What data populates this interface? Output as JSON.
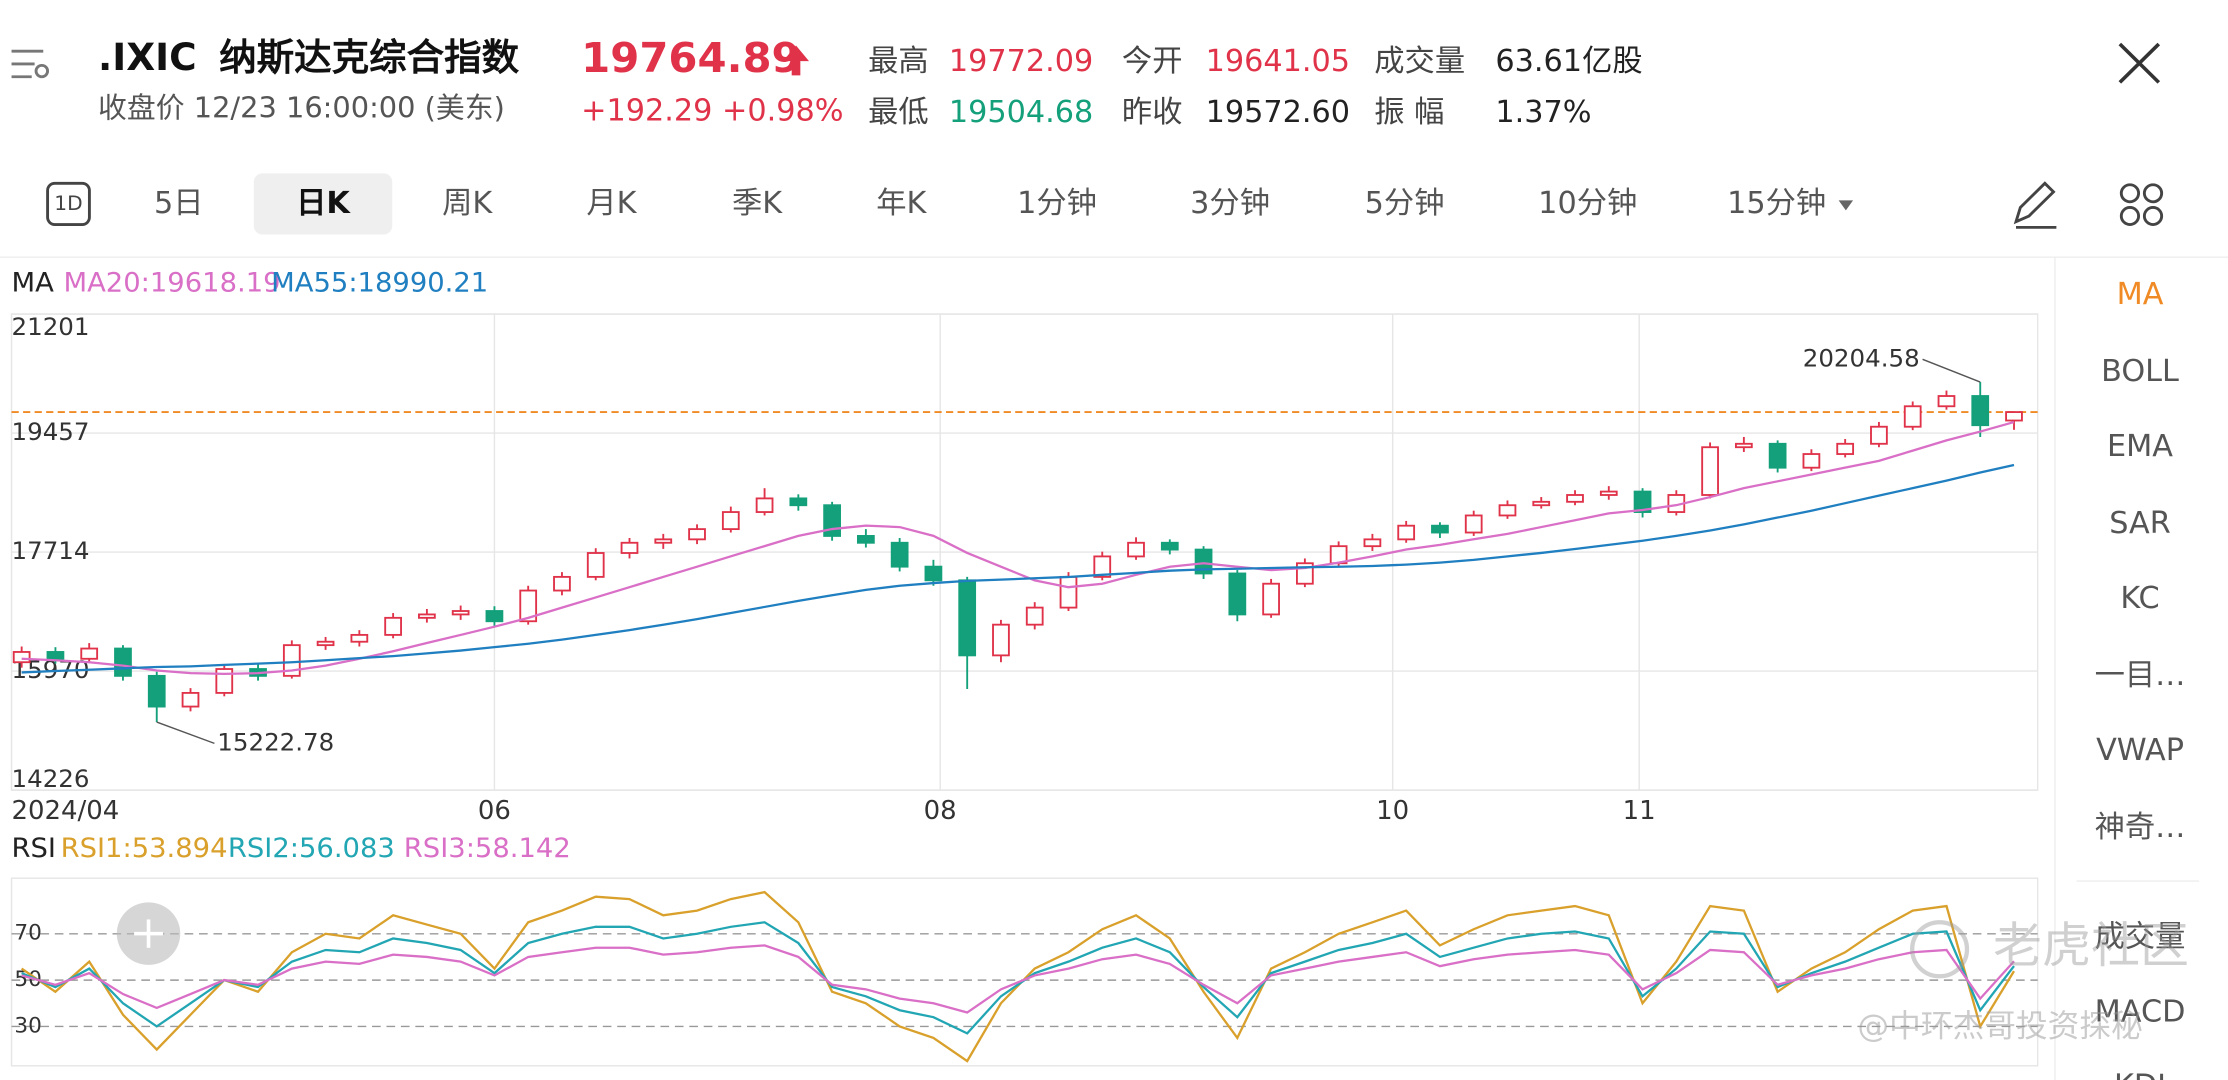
{
  "header": {
    "symbol": ".IXIC",
    "name": "纳斯达克综合指数",
    "price": "19764.89",
    "status": "收盘价 12/23 16:00:00 (美东)",
    "change": "+192.29 +0.98%",
    "stats": [
      {
        "label": "最高",
        "value": "19772.09",
        "color": "#e0334a"
      },
      {
        "label": "今开",
        "value": "19641.05",
        "color": "#e0334a"
      },
      {
        "label": "成交量",
        "value": "63.61亿股",
        "color": "#222222"
      },
      {
        "label": "最低",
        "value": "19504.68",
        "color": "#13a07a"
      },
      {
        "label": "昨收",
        "value": "19572.60",
        "color": "#222222"
      },
      {
        "label": "振 幅",
        "value": "1.37%",
        "color": "#222222"
      }
    ]
  },
  "tab_icon": "1D",
  "tabs": [
    "5日",
    "日K",
    "周K",
    "月K",
    "季K",
    "年K",
    "1分钟",
    "3分钟",
    "5分钟",
    "10分钟",
    "15分钟"
  ],
  "selected_tab": 1,
  "indicators": [
    "MA",
    "BOLL",
    "EMA",
    "SAR",
    "KC",
    "一目…",
    "VWAP",
    "神奇…",
    "成交量",
    "MACD",
    "KDJ"
  ],
  "active_indicator": 0,
  "watermarks": [
    "老虎社区",
    "@中环杰哥投资探秘"
  ],
  "chart_data": [
    {
      "type": "candlestick",
      "legend_title": "MA",
      "up_color": "#e0334a",
      "down_color": "#13a07a",
      "open": [
        16100,
        16250,
        16150,
        16300,
        15900,
        15450,
        15650,
        16000,
        15900,
        16350,
        16400,
        16500,
        16750,
        16800,
        16850,
        16700,
        17150,
        17350,
        17700,
        17850,
        17900,
        18050,
        18300,
        18500,
        18400,
        17950,
        17850,
        17500,
        17300,
        16200,
        16650,
        16900,
        17350,
        17650,
        17850,
        17750,
        17400,
        16800,
        17250,
        17550,
        17800,
        17900,
        18100,
        18000,
        18250,
        18400,
        18450,
        18550,
        18600,
        18300,
        18550,
        19250,
        19300,
        18950,
        19150,
        19300,
        19550,
        19850,
        20000,
        19641.05
      ],
      "high": [
        16330,
        16320,
        16380,
        16350,
        15960,
        15720,
        16070,
        16080,
        16420,
        16470,
        16570,
        16820,
        16880,
        16930,
        16920,
        17220,
        17420,
        17770,
        17920,
        17980,
        18120,
        18380,
        18650,
        18560,
        18450,
        18050,
        17920,
        17600,
        17350,
        16720,
        16980,
        17420,
        17720,
        17930,
        17900,
        17800,
        17450,
        17320,
        17620,
        17870,
        17980,
        18170,
        18150,
        18320,
        18470,
        18520,
        18620,
        18680,
        18650,
        18620,
        19320,
        19400,
        19350,
        19220,
        19370,
        19620,
        19920,
        20080,
        20204.58,
        19772.09
      ],
      "low": [
        16020,
        16080,
        16100,
        15830,
        15222.78,
        15380,
        15600,
        15830,
        15860,
        16280,
        16330,
        16450,
        16680,
        16720,
        16620,
        16650,
        17080,
        17300,
        17620,
        17760,
        17830,
        18000,
        18250,
        18320,
        17880,
        17780,
        17430,
        17220,
        15708,
        16100,
        16580,
        16850,
        17300,
        17600,
        17680,
        17320,
        16700,
        16750,
        17200,
        17500,
        17730,
        17850,
        17920,
        17950,
        18200,
        18350,
        18400,
        18480,
        18220,
        18250,
        18500,
        19180,
        18880,
        18900,
        19100,
        19250,
        19500,
        19800,
        19400,
        19504.68
      ],
      "close": [
        16250,
        16150,
        16300,
        15900,
        15450,
        15650,
        16000,
        15900,
        16350,
        16400,
        16500,
        16750,
        16800,
        16850,
        16700,
        17150,
        17350,
        17700,
        17850,
        17900,
        18050,
        18300,
        18500,
        18400,
        17950,
        17850,
        17500,
        17300,
        16200,
        16650,
        16900,
        17350,
        17650,
        17850,
        17750,
        17400,
        16800,
        17250,
        17550,
        17800,
        17900,
        18100,
        18000,
        18250,
        18400,
        18450,
        18550,
        18600,
        18300,
        18550,
        19250,
        19300,
        18950,
        19150,
        19300,
        19550,
        19850,
        20000,
        19572.6,
        19764.89
      ],
      "series": [
        {
          "name": "MA20:19618.19",
          "color": "#d96fc6",
          "values": [
            16150,
            16130,
            16100,
            16050,
            15980,
            15940,
            15930,
            15940,
            15980,
            16050,
            16150,
            16260,
            16380,
            16500,
            16620,
            16750,
            16900,
            17050,
            17200,
            17350,
            17500,
            17650,
            17800,
            17950,
            18050,
            18100,
            18080,
            17950,
            17700,
            17500,
            17300,
            17200,
            17250,
            17380,
            17500,
            17550,
            17500,
            17450,
            17480,
            17560,
            17650,
            17750,
            17820,
            17900,
            17980,
            18080,
            18180,
            18280,
            18330,
            18400,
            18520,
            18650,
            18750,
            18850,
            18950,
            19050,
            19200,
            19350,
            19480,
            19618.19
          ]
        },
        {
          "name": "MA55:18990.21",
          "color": "#1f7fc0",
          "values": [
            15950,
            15970,
            15990,
            16010,
            16030,
            16040,
            16060,
            16080,
            16100,
            16130,
            16160,
            16190,
            16230,
            16270,
            16320,
            16370,
            16430,
            16500,
            16570,
            16650,
            16730,
            16820,
            16910,
            17000,
            17080,
            17160,
            17220,
            17260,
            17290,
            17310,
            17330,
            17350,
            17380,
            17410,
            17440,
            17460,
            17470,
            17480,
            17490,
            17500,
            17510,
            17530,
            17560,
            17600,
            17650,
            17700,
            17760,
            17820,
            17880,
            17950,
            18030,
            18120,
            18220,
            18320,
            18430,
            18540,
            18650,
            18760,
            18880,
            18990.21
          ]
        }
      ],
      "ylim": [
        14226,
        21201
      ],
      "yticks": [
        21201,
        19457,
        17714,
        15970,
        14226
      ],
      "xlim": [
        -0.3,
        59.7
      ],
      "xticks": [
        {
          "value": -0.3,
          "label": "2024/04"
        },
        {
          "value": 14,
          "label": "06"
        },
        {
          "value": 27.2,
          "label": "08"
        },
        {
          "value": 40.6,
          "label": "10"
        },
        {
          "value": 47.9,
          "label": "11"
        }
      ],
      "grid": true,
      "reference_line": {
        "value": 19764.89,
        "color": "#f08a24"
      },
      "annotations": [
        {
          "label": "20204.58",
          "index": 58,
          "value": 20204.58
        },
        {
          "label": "15222.78",
          "index": 4,
          "value": 15222.78
        }
      ]
    },
    {
      "type": "line",
      "legend_title": "RSI",
      "series": [
        {
          "name": "RSI1:53.894",
          "color": "#d9a02b",
          "values": [
            55,
            45,
            58,
            35,
            20,
            35,
            50,
            45,
            62,
            70,
            68,
            78,
            74,
            70,
            55,
            75,
            80,
            86,
            85,
            78,
            80,
            85,
            88,
            75,
            45,
            40,
            30,
            25,
            15,
            40,
            55,
            62,
            72,
            78,
            68,
            45,
            25,
            55,
            62,
            70,
            75,
            80,
            65,
            72,
            78,
            80,
            82,
            78,
            40,
            58,
            82,
            80,
            45,
            55,
            62,
            72,
            80,
            82,
            30,
            53.894
          ]
        },
        {
          "name": "RSI2:56.083",
          "color": "#22a6b3",
          "values": [
            53,
            47,
            55,
            40,
            30,
            40,
            50,
            47,
            58,
            63,
            62,
            68,
            66,
            63,
            53,
            66,
            70,
            73,
            73,
            68,
            70,
            73,
            75,
            66,
            47,
            43,
            37,
            34,
            27,
            43,
            53,
            58,
            64,
            68,
            62,
            47,
            34,
            53,
            58,
            63,
            66,
            70,
            60,
            64,
            68,
            70,
            71,
            68,
            43,
            55,
            71,
            70,
            47,
            53,
            58,
            64,
            70,
            71,
            37,
            56.083
          ]
        },
        {
          "name": "RSI3:58.142",
          "color": "#d96fc6",
          "values": [
            52,
            48,
            53,
            44,
            38,
            44,
            50,
            48,
            55,
            58,
            57,
            61,
            60,
            58,
            52,
            60,
            62,
            64,
            64,
            61,
            62,
            64,
            65,
            60,
            48,
            46,
            42,
            40,
            36,
            46,
            52,
            55,
            59,
            61,
            57,
            48,
            40,
            52,
            55,
            58,
            60,
            62,
            56,
            59,
            61,
            62,
            63,
            61,
            46,
            53,
            63,
            62,
            48,
            52,
            55,
            59,
            62,
            63,
            42,
            58.142
          ]
        }
      ],
      "ylim": [
        13,
        94
      ],
      "yticks": [
        30,
        50,
        70
      ],
      "xlim": [
        -0.3,
        59.7
      ],
      "grid": true
    }
  ]
}
